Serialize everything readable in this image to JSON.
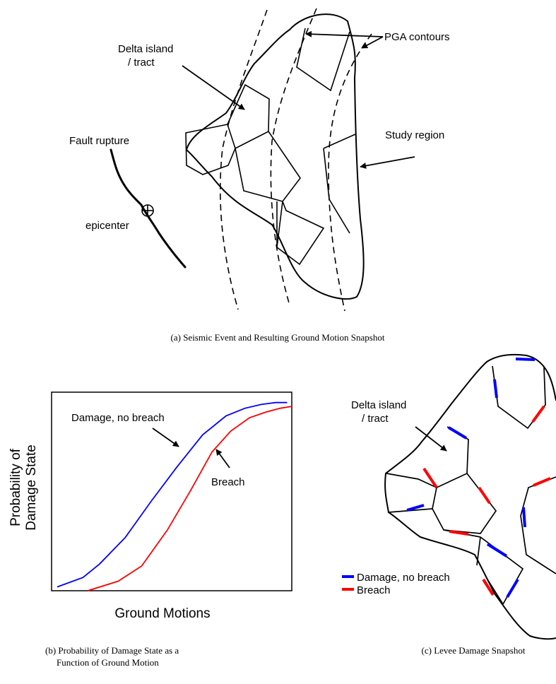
{
  "panel_a": {
    "labels": {
      "delta_island_1": "Delta island",
      "delta_island_2": "/ tract",
      "pga_contours": "PGA contours",
      "fault_rupture": "Fault rupture",
      "study_region": "Study region",
      "epicenter": "epicenter"
    },
    "caption": "(a) Seismic Event and Resulting Ground Motion Snapshot"
  },
  "panel_b": {
    "ylabel_1": "Probability of",
    "ylabel_2": "Damage State",
    "xlabel": "Ground Motions",
    "curve_labels": {
      "damage": "Damage, no breach",
      "breach": "Breach"
    },
    "caption_1": "(b) Probability of Damage State as a",
    "caption_2": "Function of Ground Motion",
    "chart_data": {
      "type": "line",
      "title": "",
      "xlabel": "Ground Motions",
      "ylabel": "Probability of Damage State",
      "series": [
        {
          "name": "Damage, no breach",
          "color": "#0000ff",
          "x": [
            0.0,
            0.11,
            0.18,
            0.29,
            0.4,
            0.51,
            0.62,
            0.72,
            0.8,
            0.87,
            0.93,
            0.98
          ],
          "y": [
            0.02,
            0.07,
            0.14,
            0.28,
            0.47,
            0.65,
            0.82,
            0.92,
            0.96,
            0.98,
            0.99,
            0.99
          ]
        },
        {
          "name": "Breach",
          "color": "#ff0000",
          "x": [
            0.13,
            0.26,
            0.36,
            0.47,
            0.57,
            0.66,
            0.74,
            0.82,
            0.89,
            0.95,
            1.0
          ],
          "y": [
            0.0,
            0.05,
            0.13,
            0.32,
            0.53,
            0.73,
            0.84,
            0.91,
            0.94,
            0.96,
            0.97
          ]
        }
      ]
    }
  },
  "panel_c": {
    "delta_island_1": "Delta island",
    "delta_island_2": "/ tract",
    "legend": {
      "damage": "Damage, no breach",
      "breach": "Breach",
      "damage_color": "#0000ff",
      "breach_color": "#ff0000"
    },
    "caption": "(c) Levee Damage Snapshot"
  }
}
